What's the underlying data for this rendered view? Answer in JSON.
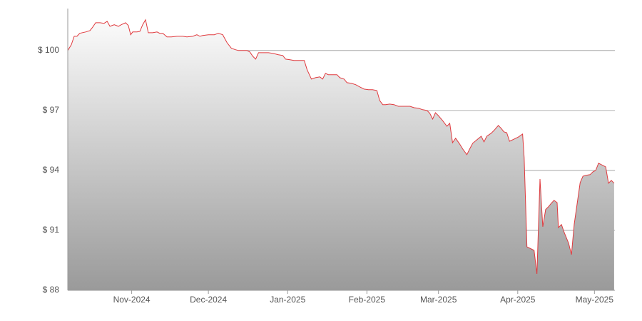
{
  "chart_data": {
    "type": "area",
    "color": "#e03a3e",
    "grid": true,
    "x": [
      6,
      7.4,
      8.5,
      9.6,
      10.7,
      13,
      14.7,
      15.8,
      16.9,
      18.6,
      20.2,
      21.4,
      22.5,
      24.2,
      25.8,
      26.9,
      28.6,
      29.7,
      30.6,
      31.4,
      33.1,
      34.2,
      35.3,
      36.4,
      37.5,
      39.2,
      40.9,
      42,
      43.2,
      44.8,
      46.5,
      48.7,
      51,
      52.6,
      54.9,
      56.5,
      57.7,
      58.8,
      61,
      63.3,
      64.9,
      66.6,
      68.3,
      70,
      71.6,
      72.8,
      74.4,
      76.1,
      77.2,
      78.4,
      79.5,
      80.6,
      82.3,
      84.5,
      86.2,
      88.4,
      90.1,
      91.2,
      92.9,
      94.5,
      96.8,
      98.5,
      99.6,
      101.3,
      102.9,
      104.6,
      105.7,
      106.8,
      107.9,
      109.6,
      111.3,
      112.4,
      114.1,
      115.2,
      116.9,
      118.6,
      120.2,
      121.9,
      123.6,
      125.2,
      126.9,
      128,
      129.2,
      130.3,
      131.9,
      133.6,
      135.3,
      137.6,
      139.8,
      141.5,
      143.2,
      144.8,
      146.5,
      147.6,
      148.7,
      149.8,
      150.9,
      152.6,
      154.3,
      155.4,
      156.5,
      157.7,
      159.3,
      160.5,
      162.1,
      163.2,
      164.4,
      166.1,
      167.7,
      168.8,
      169.9,
      171.6,
      172.7,
      174.4,
      175.5,
      176.6,
      177.7,
      178.8,
      180.6,
      182.3,
      183.9,
      184.5,
      185.6,
      187.3,
      188.4,
      189.5,
      190.7,
      191.8,
      192.9,
      194,
      195.1,
      196.2,
      197.4,
      197.9,
      199.1,
      200.2,
      201.9,
      203,
      204.1,
      205.3,
      206.4,
      207.5,
      208.6,
      210.3,
      211.4,
      212.5,
      213.6,
      214.7,
      216.4,
      217.5,
      218.6,
      219.7
    ],
    "values": [
      100.0,
      100.29,
      100.71,
      100.71,
      100.86,
      100.93,
      101.0,
      101.18,
      101.39,
      101.39,
      101.36,
      101.46,
      101.21,
      101.29,
      101.21,
      101.29,
      101.39,
      101.25,
      100.79,
      100.93,
      100.93,
      100.96,
      101.29,
      101.54,
      100.89,
      100.89,
      100.93,
      100.86,
      100.86,
      100.68,
      100.68,
      100.71,
      100.71,
      100.68,
      100.71,
      100.79,
      100.71,
      100.75,
      100.79,
      100.79,
      100.86,
      100.79,
      100.39,
      100.11,
      100.04,
      100.0,
      100.0,
      100.0,
      99.93,
      99.71,
      99.57,
      99.89,
      99.89,
      99.89,
      99.86,
      99.79,
      99.75,
      99.57,
      99.54,
      99.5,
      99.5,
      99.5,
      99.04,
      98.57,
      98.64,
      98.68,
      98.57,
      98.86,
      98.79,
      98.79,
      98.79,
      98.64,
      98.57,
      98.39,
      98.36,
      98.29,
      98.18,
      98.07,
      98.04,
      98.04,
      98.0,
      97.5,
      97.29,
      97.29,
      97.32,
      97.29,
      97.21,
      97.21,
      97.21,
      97.14,
      97.11,
      97.04,
      97.0,
      96.86,
      96.57,
      96.89,
      96.75,
      96.5,
      96.21,
      96.36,
      95.39,
      95.61,
      95.32,
      95.07,
      94.79,
      95.07,
      95.36,
      95.54,
      95.71,
      95.43,
      95.71,
      95.86,
      96.0,
      96.25,
      96.11,
      95.93,
      95.89,
      95.46,
      95.57,
      95.68,
      95.82,
      94.64,
      90.18,
      90.07,
      90.0,
      88.82,
      93.57,
      91.18,
      92.04,
      92.18,
      92.36,
      92.5,
      92.39,
      91.14,
      91.29,
      90.89,
      90.36,
      89.79,
      91.32,
      92.39,
      93.39,
      93.71,
      93.75,
      93.79,
      93.93,
      94.0,
      94.36,
      94.29,
      94.18,
      93.36,
      93.5,
      93.36
    ],
    "xlim": [
      6,
      220
    ],
    "xticks": [
      {
        "value": 31,
        "label": "Nov-2024"
      },
      {
        "value": 61,
        "label": "Dec-2024"
      },
      {
        "value": 92,
        "label": "Jan-2025"
      },
      {
        "value": 123,
        "label": "Feb-2025"
      },
      {
        "value": 151,
        "label": "Mar-2025"
      },
      {
        "value": 182,
        "label": "Apr-2025"
      },
      {
        "value": 212,
        "label": "May-2025"
      }
    ],
    "ylim": [
      88,
      102.1
    ],
    "yticks": [
      {
        "value": 88,
        "label": "$ 88"
      },
      {
        "value": 91,
        "label": "$ 91"
      },
      {
        "value": 94,
        "label": "$ 94"
      },
      {
        "value": 97,
        "label": "$ 97"
      },
      {
        "value": 100,
        "label": "$ 100"
      }
    ]
  }
}
